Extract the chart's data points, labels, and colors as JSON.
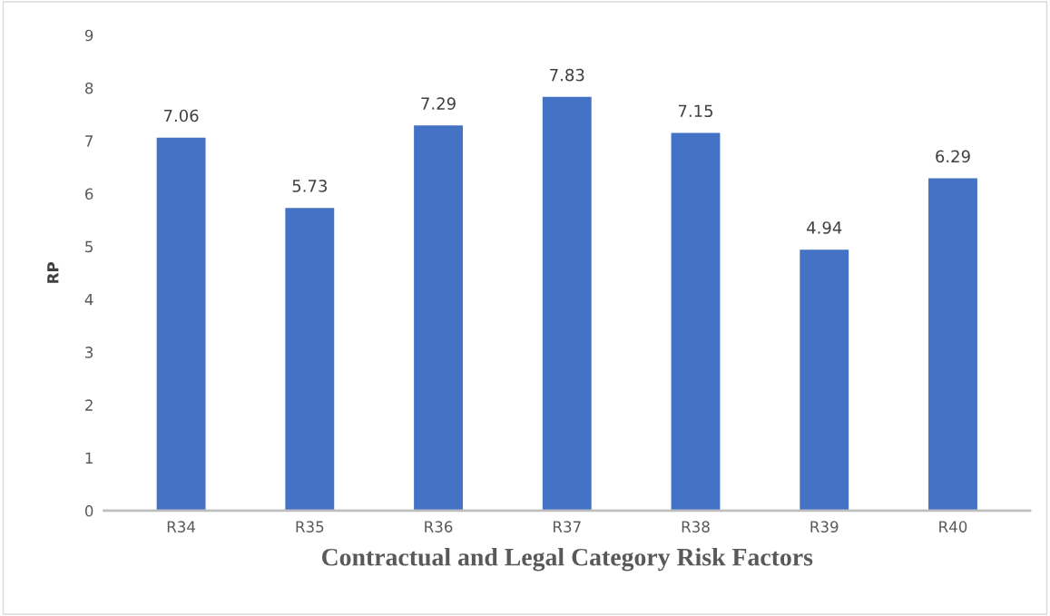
{
  "chart_data": {
    "type": "bar",
    "xlabel": "Contractual and Legal Category Risk Factors",
    "ylabel": "RP",
    "categories": [
      "R34",
      "R35",
      "R36",
      "R37",
      "R38",
      "R39",
      "R40"
    ],
    "values": [
      7.06,
      5.73,
      7.29,
      7.83,
      7.15,
      4.94,
      6.29
    ],
    "color": "#4472c4",
    "ylim": [
      0,
      9
    ],
    "yticks": [
      0,
      1,
      2,
      3,
      4,
      5,
      6,
      7,
      8,
      9
    ],
    "grid": false,
    "data_labels": true
  }
}
